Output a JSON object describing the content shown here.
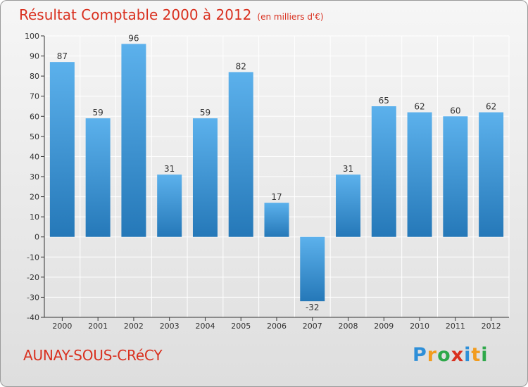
{
  "header": {
    "title": "Résultat Comptable 2000 à 2012",
    "unit": "(en milliers d'€)"
  },
  "footer": {
    "commune": "AUNAY-SOUS-CRéCY",
    "brand": "Proxiti",
    "brand_letters": [
      "P",
      "r",
      "o",
      "x",
      "i",
      "t",
      "i"
    ],
    "brand_colors": [
      "#2e8fd8",
      "#f29c1e",
      "#2ea84a",
      "#d9301f",
      "#2e8fd8",
      "#f29c1e",
      "#2ea84a"
    ]
  },
  "chart_data": {
    "type": "bar",
    "title": "Résultat Comptable 2000 à 2012",
    "subtitle": "(en milliers d'€)",
    "xlabel": "",
    "ylabel": "",
    "categories": [
      "2000",
      "2001",
      "2002",
      "2003",
      "2004",
      "2005",
      "2006",
      "2007",
      "2008",
      "2009",
      "2010",
      "2011",
      "2012"
    ],
    "values": [
      87,
      59,
      96,
      31,
      59,
      82,
      17,
      -32,
      31,
      65,
      62,
      60,
      62
    ],
    "ylim": [
      -40,
      100
    ],
    "yticks": [
      -40,
      -30,
      -20,
      -10,
      0,
      10,
      20,
      30,
      40,
      50,
      60,
      70,
      80,
      90,
      100
    ],
    "grid": true,
    "bar_color_light": "#5cb1ec",
    "bar_color_dark": "#2578b8",
    "grid_color": "#ffffff"
  }
}
